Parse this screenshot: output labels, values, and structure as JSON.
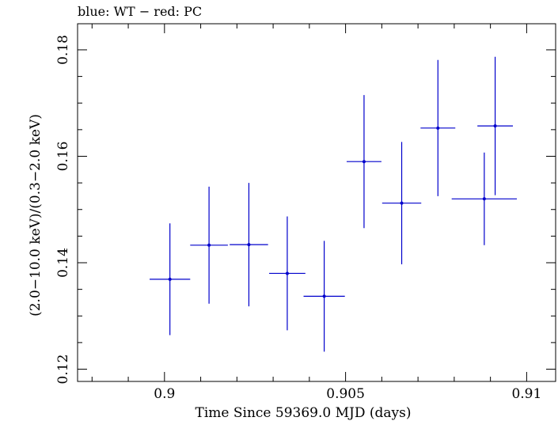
{
  "chart_data": {
    "type": "scatter",
    "title": "blue: WT − red: PC",
    "xlabel": "Time Since 59369.0 MJD (days)",
    "ylabel": "(2.0−10.0 keV)/(0.3−2.0 keV)",
    "xlim": [
      0.8976,
      0.9108
    ],
    "ylim": [
      0.1177,
      0.1849
    ],
    "xticks": [
      {
        "value": 0.9,
        "label": "0.9"
      },
      {
        "value": 0.905,
        "label": "0.905"
      },
      {
        "value": 0.91,
        "label": "0.91"
      }
    ],
    "yticks": [
      {
        "value": 0.12,
        "label": "0.12"
      },
      {
        "value": 0.14,
        "label": "0.14"
      },
      {
        "value": 0.16,
        "label": "0.16"
      },
      {
        "value": 0.18,
        "label": "0.18"
      }
    ],
    "x_minor_step": 0.001,
    "y_minor_step": 0.005,
    "grid": false,
    "series": [
      {
        "color": "#0000cc",
        "points": [
          {
            "x": 0.90913,
            "y": 0.1657,
            "xerr": 0.00049,
            "yerr": 0.013
          },
          {
            "x": 0.90015,
            "y": 0.1369,
            "xerr": 0.00056,
            "yerr": 0.0105
          },
          {
            "x": 0.90123,
            "y": 0.1433,
            "xerr": 0.00052,
            "yerr": 0.011
          },
          {
            "x": 0.90233,
            "y": 0.1434,
            "xerr": 0.00053,
            "yerr": 0.0116
          },
          {
            "x": 0.90339,
            "y": 0.138,
            "xerr": 0.0005,
            "yerr": 0.0107
          },
          {
            "x": 0.90441,
            "y": 0.1337,
            "xerr": 0.00057,
            "yerr": 0.0104
          },
          {
            "x": 0.90551,
            "y": 0.159,
            "xerr": 0.00048,
            "yerr": 0.0125
          },
          {
            "x": 0.90655,
            "y": 0.1512,
            "xerr": 0.00054,
            "yerr": 0.0115
          },
          {
            "x": 0.90755,
            "y": 0.1653,
            "xerr": 0.00048,
            "yerr": 0.0128
          },
          {
            "x": 0.90883,
            "y": 0.152,
            "xerr": 0.0009,
            "yerr": 0.0087
          }
        ]
      }
    ]
  }
}
